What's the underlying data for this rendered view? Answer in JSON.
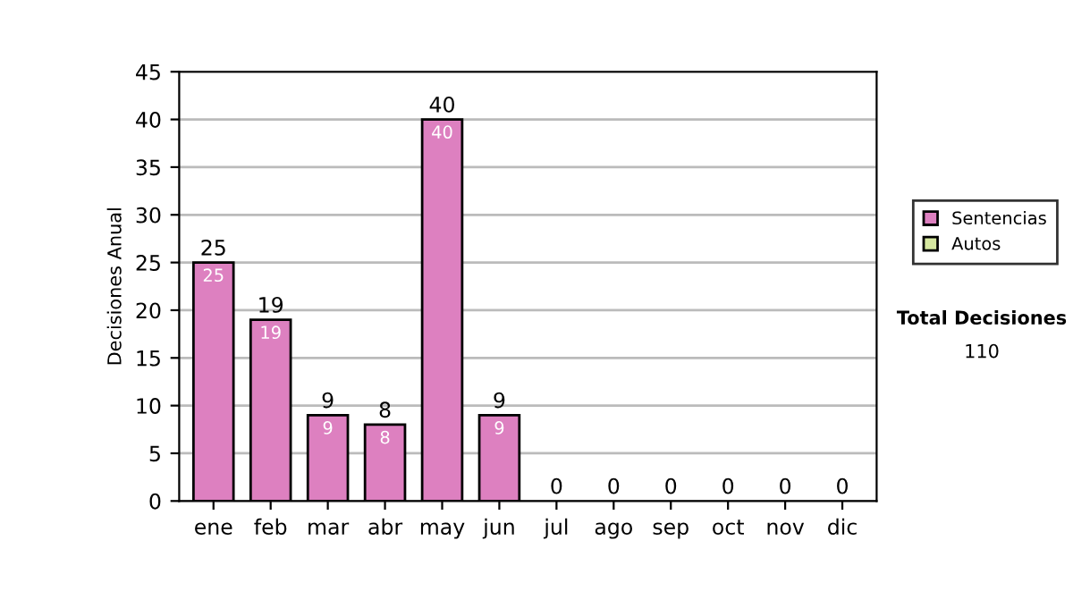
{
  "chart_data": {
    "type": "bar",
    "stacked": true,
    "categories": [
      "ene",
      "feb",
      "mar",
      "abr",
      "may",
      "jun",
      "jul",
      "ago",
      "sep",
      "oct",
      "nov",
      "dic"
    ],
    "ylabel": "Decisiones Anual",
    "series": [
      {
        "name": "Sentencias",
        "color": "#dd80c0",
        "values": [
          25,
          19,
          9,
          8,
          40,
          9,
          0,
          0,
          0,
          0,
          0,
          0
        ],
        "value_labels": [
          "25",
          "19",
          "9",
          "8",
          "40",
          "9",
          null,
          null,
          null,
          null,
          null,
          null
        ]
      },
      {
        "name": "Autos",
        "color": "#d6e8a0",
        "values": [
          0,
          0,
          0,
          0,
          0,
          0,
          0,
          0,
          0,
          0,
          0,
          0
        ]
      }
    ],
    "totals": [
      "25",
      "19",
      "9",
      "8",
      "40",
      "9",
      "0",
      "0",
      "0",
      "0",
      "0",
      "0"
    ],
    "ylim": [
      0,
      45
    ],
    "yticks": [
      0,
      5,
      10,
      15,
      20,
      25,
      30,
      35,
      40,
      45
    ],
    "grid": "y",
    "legend": "right",
    "annotations": [
      "Total Decisiones",
      "110"
    ]
  }
}
